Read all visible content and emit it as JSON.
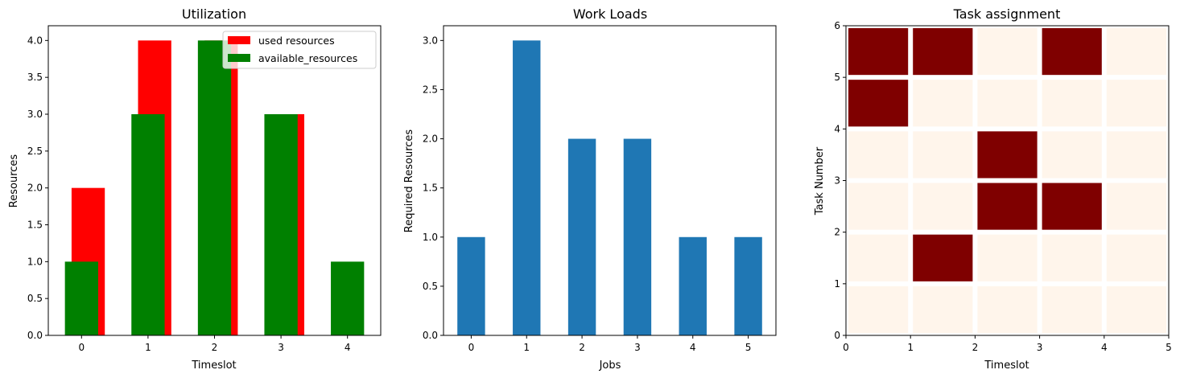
{
  "chart_data": [
    {
      "type": "bar",
      "title": "Utilization",
      "xlabel": "Timeslot",
      "ylabel": "Resources",
      "categories": [
        "0",
        "1",
        "2",
        "3",
        "4"
      ],
      "x": [
        0,
        1,
        2,
        3,
        4
      ],
      "series": [
        {
          "name": "used resources",
          "values": [
            2,
            4,
            4,
            3,
            0
          ],
          "color": "#ff0000"
        },
        {
          "name": "available_resources",
          "values": [
            1,
            3,
            4,
            3,
            1
          ],
          "color": "#008000"
        }
      ],
      "ylim": [
        0,
        4.2
      ],
      "yticks": [
        "0.0",
        "0.5",
        "1.0",
        "1.5",
        "2.0",
        "2.5",
        "3.0",
        "3.5",
        "4.0"
      ],
      "legend": "top-right"
    },
    {
      "type": "bar",
      "title": "Work Loads",
      "xlabel": "Jobs",
      "ylabel": "Required Resources",
      "categories": [
        "0",
        "1",
        "2",
        "3",
        "4",
        "5"
      ],
      "values": [
        1,
        3,
        2,
        2,
        1,
        1
      ],
      "color": "#1f77b4",
      "ylim": [
        0,
        3.15
      ],
      "yticks": [
        "0.0",
        "0.5",
        "1.0",
        "1.5",
        "2.0",
        "2.5",
        "3.0"
      ]
    },
    {
      "type": "heatmap",
      "title": "Task assignment",
      "xlabel": "Timeslot",
      "ylabel": "Task Number",
      "xticks": [
        "0",
        "1",
        "2",
        "3",
        "4",
        "5"
      ],
      "yticks": [
        "0",
        "1",
        "2",
        "3",
        "4",
        "5",
        "6"
      ],
      "rows_top_to_bottom": [
        [
          1,
          1,
          0,
          1,
          0
        ],
        [
          1,
          0,
          0,
          0,
          0
        ],
        [
          0,
          0,
          1,
          0,
          0
        ],
        [
          0,
          0,
          1,
          1,
          0
        ],
        [
          0,
          1,
          0,
          0,
          0
        ],
        [
          0,
          0,
          0,
          0,
          0
        ]
      ],
      "colors": {
        "off": "#fff5eb",
        "on": "#7f0000"
      }
    }
  ]
}
